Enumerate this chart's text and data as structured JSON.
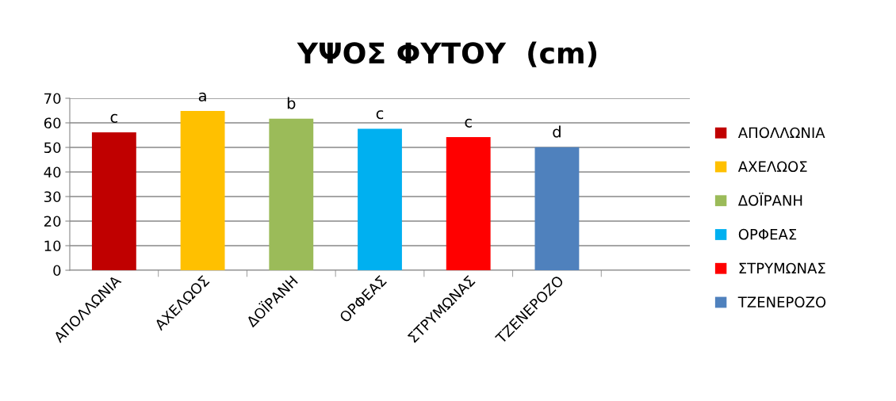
{
  "chart_data": {
    "type": "bar",
    "title": "ΥΨΟΣ ΦΥΤΟΥ  (cm)",
    "categories": [
      "ΑΠΟΛΛΩΝΙΑ",
      "ΑΧΕΛΩΟΣ",
      "ΔΟΪΡΑΝΗ",
      "ΟΡΦΕΑΣ",
      "ΣΤΡΥΜΩΝΑΣ",
      "ΤΖΕΝΕΡΟΖΟ",
      null
    ],
    "series": [
      {
        "name": "ΑΠΟΛΛΩΝΙΑ",
        "color": "#c00000",
        "values": [
          56.1,
          null,
          null,
          null,
          null,
          null,
          null
        ]
      },
      {
        "name": "ΑΧΕΛΩΟΣ",
        "color": "#ffc000",
        "values": [
          null,
          64.8,
          null,
          null,
          null,
          null,
          null
        ]
      },
      {
        "name": "ΔΟΪΡΑΝΗ",
        "color": "#9bbb59",
        "values": [
          null,
          null,
          61.7,
          null,
          null,
          null,
          null
        ]
      },
      {
        "name": "ΟΡΦΕΑΣ",
        "color": "#00b0f0",
        "values": [
          null,
          null,
          null,
          57.6,
          null,
          null,
          null
        ]
      },
      {
        "name": "ΣΤΡΥΜΩΝΑΣ",
        "color": "#ff0000",
        "values": [
          null,
          null,
          null,
          null,
          54.2,
          null,
          null
        ]
      },
      {
        "name": "ΤΖΕΝΕΡΟΖΟ",
        "color": "#4f81bd",
        "values": [
          null,
          null,
          null,
          null,
          null,
          50.1,
          null
        ]
      }
    ],
    "ylim": [
      0,
      70
    ],
    "yticks": [
      0,
      10,
      20,
      30,
      40,
      50,
      60,
      70
    ],
    "grid": "y",
    "legend": "right",
    "annotations": [
      {
        "text": "c",
        "x": "ΑΠΟΛΛΩΝΙΑ",
        "y": 56.1
      },
      {
        "text": "a",
        "x": "ΑΧΕΛΩΟΣ",
        "y": 64.8
      },
      {
        "text": "b",
        "x": "ΔΟΪΡΑΝΗ",
        "y": 61.7
      },
      {
        "text": "c",
        "x": "ΟΡΦΕΑΣ",
        "y": 57.6
      },
      {
        "text": "c",
        "x": "ΣΤΡΥΜΩΝΑΣ",
        "y": 54.2
      },
      {
        "text": "d",
        "x": "ΤΖΕΝΕΡΟΖΟ",
        "y": 50.1
      }
    ]
  }
}
